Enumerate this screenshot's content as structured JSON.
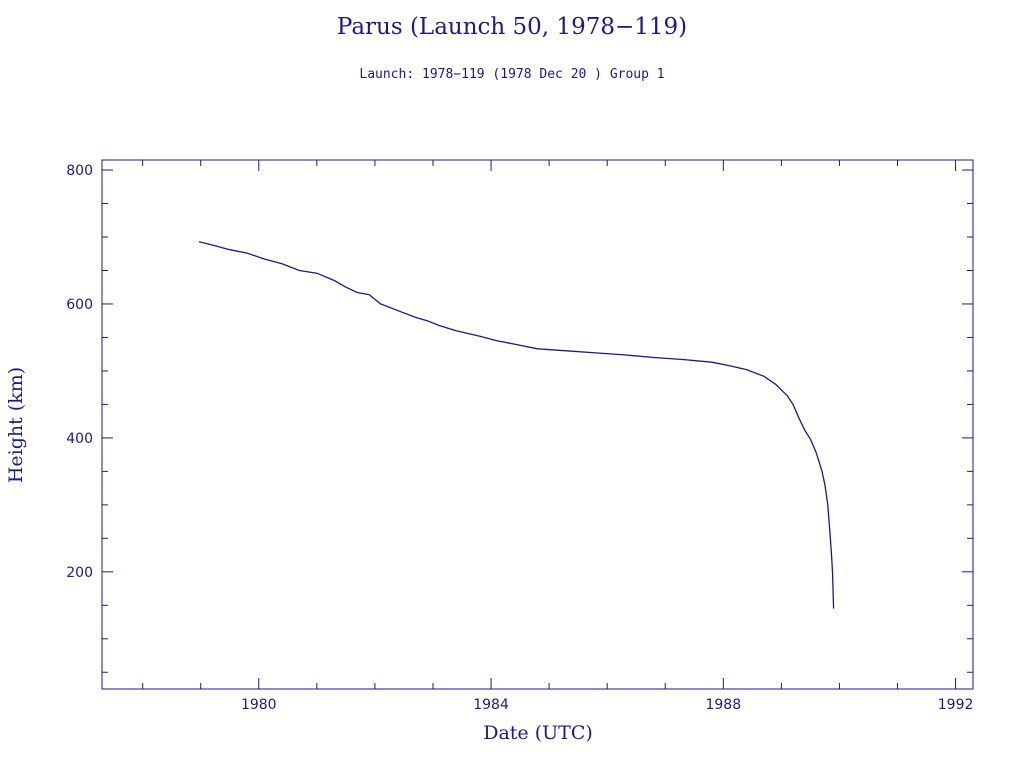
{
  "chart_data": {
    "type": "line",
    "title": "Parus (Launch 50, 1978−119)",
    "subtitle": "Launch: 1978−119  (1978 Dec 20 )  Group 1",
    "xlabel": "Date (UTC)",
    "ylabel": "Height (km)",
    "xlim": [
      1977.3,
      1992.3
    ],
    "ylim": [
      25,
      815
    ],
    "x_ticks": [
      1980,
      1984,
      1988,
      1992
    ],
    "y_ticks": [
      200,
      400,
      600,
      800
    ],
    "grid": false,
    "color": "#1a1a8c",
    "series": [
      {
        "x": [
          1978.97,
          1979.2,
          1979.5,
          1979.8,
          1980.1,
          1980.4,
          1980.7,
          1981.0,
          1981.3,
          1981.5,
          1981.7,
          1981.9,
          1982.1,
          1982.4,
          1982.7,
          1982.9,
          1983.1,
          1983.4,
          1983.8,
          1984.1,
          1984.4,
          1984.8,
          1985.3,
          1985.8,
          1986.3,
          1986.8,
          1987.3,
          1987.8,
          1988.1,
          1988.4,
          1988.7,
          1988.9,
          1989.1,
          1989.2,
          1989.3,
          1989.4,
          1989.5,
          1989.6,
          1989.7,
          1989.75,
          1989.8,
          1989.83,
          1989.86,
          1989.88,
          1989.9
        ],
        "y": [
          693,
          688,
          681,
          676,
          667,
          660,
          650,
          646,
          635,
          625,
          617,
          614,
          600,
          590,
          580,
          575,
          568,
          560,
          552,
          545,
          540,
          533,
          530,
          527,
          524,
          520,
          517,
          513,
          508,
          502,
          492,
          480,
          463,
          450,
          430,
          412,
          398,
          378,
          350,
          330,
          300,
          265,
          230,
          200,
          145
        ]
      }
    ]
  }
}
